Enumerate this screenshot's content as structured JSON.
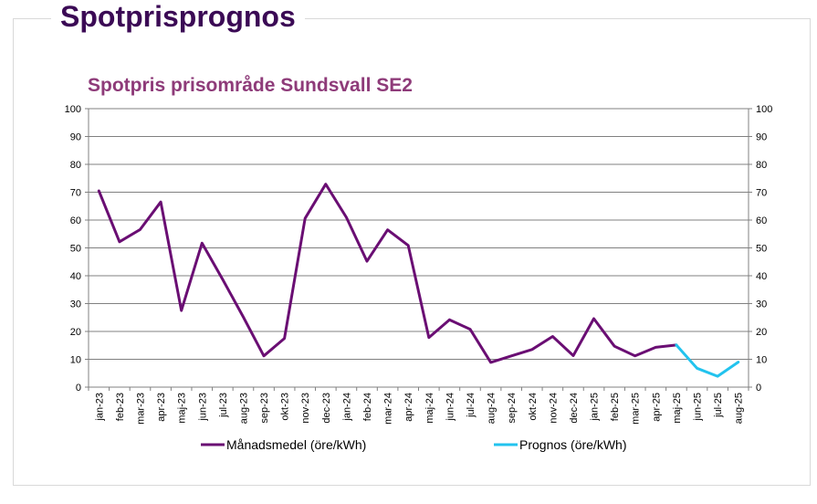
{
  "page": {
    "title": "Spotprisprognos"
  },
  "chart_data": {
    "type": "line",
    "title": "Spotpris prisområde Sundsvall SE2",
    "xlabel": "",
    "ylabel": "",
    "ylim": [
      0,
      100
    ],
    "yticks": [
      "0",
      "10",
      "20",
      "30",
      "40",
      "50",
      "60",
      "70",
      "80",
      "90",
      "100"
    ],
    "y2ticks": [
      "0",
      "10",
      "20",
      "30",
      "40",
      "50",
      "60",
      "70",
      "80",
      "90",
      "100"
    ],
    "grid": true,
    "legend_position": "bottom",
    "categories": [
      "jan-23",
      "feb-23",
      "mar-23",
      "apr-23",
      "maj-23",
      "jun-23",
      "jul-23",
      "aug-23",
      "sep-23",
      "okt-23",
      "nov-23",
      "dec-23",
      "jan-24",
      "feb-24",
      "mar-24",
      "apr-24",
      "maj-24",
      "jun-24",
      "jul-24",
      "aug-24",
      "sep-24",
      "okt-24",
      "nov-24",
      "dec-24",
      "jan-25",
      "feb-25",
      "mar-25",
      "apr-25",
      "maj-25",
      "jun-25",
      "jul-25",
      "aug-25"
    ],
    "series": [
      {
        "name": "Månadsmedel (öre/kWh)",
        "color": "#6a0e73",
        "values": [
          70.5,
          52.2,
          56.6,
          66.5,
          27.5,
          51.7,
          38.7,
          25.2,
          11.2,
          17.5,
          60.6,
          72.9,
          61.0,
          45.2,
          56.5,
          50.9,
          17.8,
          24.2,
          20.8,
          8.9,
          11.2,
          13.5,
          18.2,
          11.3,
          24.6,
          14.7,
          11.2,
          14.3,
          15.1,
          null,
          null,
          null
        ]
      },
      {
        "name": "Prognos (öre/kWh)",
        "color": "#22c3ee",
        "values": [
          null,
          null,
          null,
          null,
          null,
          null,
          null,
          null,
          null,
          null,
          null,
          null,
          null,
          null,
          null,
          null,
          null,
          null,
          null,
          null,
          null,
          null,
          null,
          null,
          null,
          null,
          null,
          null,
          15.1,
          6.8,
          3.9,
          9.0
        ]
      }
    ]
  }
}
